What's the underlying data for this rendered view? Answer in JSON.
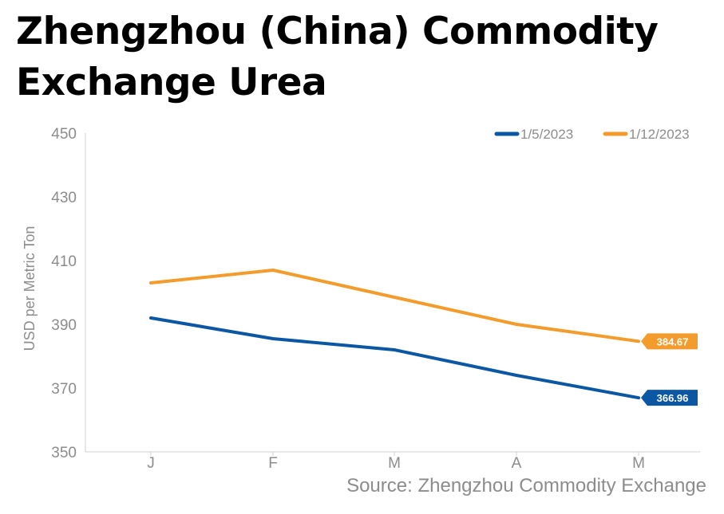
{
  "chart_data": {
    "type": "line",
    "title": "Zhengzhou (China) Commodity Exchange Urea",
    "ylabel": "USD per Metric Ton",
    "xlabel": "",
    "categories": [
      "J",
      "F",
      "M",
      "A",
      "M"
    ],
    "ylim": [
      350,
      450
    ],
    "yticks": [
      350,
      370,
      390,
      410,
      430,
      450
    ],
    "legend_position": "top-right",
    "grid": false,
    "series": [
      {
        "name": "1/5/2023",
        "color": "#0b57a4",
        "values": [
          392,
          385.5,
          382,
          374,
          366.96
        ],
        "end_label": "366.96"
      },
      {
        "name": "1/12/2023",
        "color": "#f39c2c",
        "values": [
          403,
          407,
          398.5,
          390,
          384.67
        ],
        "end_label": "384.67"
      }
    ],
    "source": "Source: Zhengzhou Commodity Exchange"
  }
}
